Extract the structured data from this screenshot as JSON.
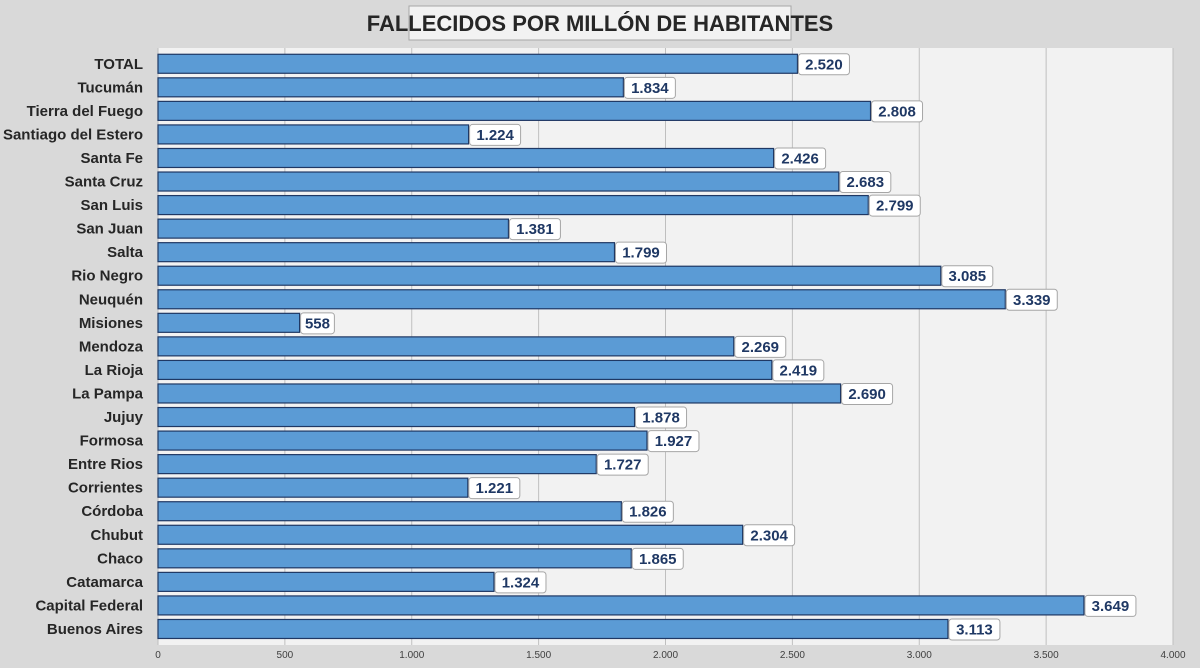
{
  "chart_data": {
    "type": "bar",
    "orientation": "horizontal",
    "title": "FALLECIDOS POR MILLÓN DE HABITANTES",
    "categories": [
      "TOTAL",
      "Tucumán",
      "Tierra del Fuego",
      "Santiago del Estero",
      "Santa Fe",
      "Santa Cruz",
      "San Luis",
      "San Juan",
      "Salta",
      "Rio Negro",
      "Neuquén",
      "Misiones",
      "Mendoza",
      "La Rioja",
      "La Pampa",
      "Jujuy",
      "Formosa",
      "Entre Rios",
      "Corrientes",
      "Córdoba",
      "Chubut",
      "Chaco",
      "Catamarca",
      "Capital Federal",
      "Buenos Aires"
    ],
    "values": [
      2520,
      1834,
      2808,
      1224,
      2426,
      2683,
      2799,
      1381,
      1799,
      3085,
      3339,
      558,
      2269,
      2419,
      2690,
      1878,
      1927,
      1727,
      1221,
      1826,
      2304,
      1865,
      1324,
      3649,
      3113
    ],
    "data_labels": [
      "2.520",
      "1.834",
      "2.808",
      "1.224",
      "2.426",
      "2.683",
      "2.799",
      "1.381",
      "1.799",
      "3.085",
      "3.339",
      "558",
      "2.269",
      "2.419",
      "2.690",
      "1.878",
      "1.927",
      "1.727",
      "1.221",
      "1.826",
      "2.304",
      "1.865",
      "1.324",
      "3.649",
      "3.113"
    ],
    "xlim": [
      0,
      4000
    ],
    "ticks": [
      0,
      500,
      1000,
      1500,
      2000,
      2500,
      3000,
      3500,
      4000
    ],
    "tick_labels": [
      "0",
      "500",
      "1.000",
      "1.500",
      "2.000",
      "2.500",
      "3.000",
      "3.500",
      "4.000"
    ],
    "grid": true,
    "legend": "none",
    "colors": {
      "bar": "#5b9bd5",
      "bar_border": "#1f3864",
      "plot_bg": "#f2f2f2",
      "page_bg": "#d9d9d9",
      "gridline": "#bfbfbf",
      "label_text": "#1f3864"
    }
  }
}
